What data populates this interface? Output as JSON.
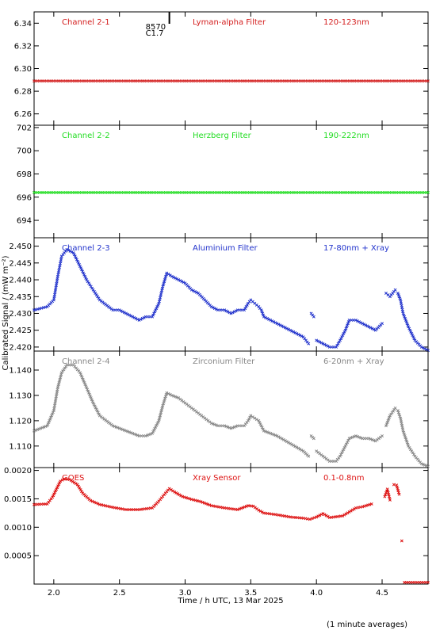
{
  "chart_data": {
    "type": "scatter",
    "xlabel": "Time / h UTC, 13 Mar 2025",
    "ylabel": "Calibrated Signal / (mW m⁻²)",
    "footnote": "(1 minute averages)",
    "xlim": [
      1.85,
      4.85
    ],
    "xticks": [
      "2.0",
      "2.5",
      "3.0",
      "3.5",
      "4.0",
      "4.5"
    ],
    "panels": [
      {
        "id": "p1",
        "color": "#d42020",
        "channel": "Channel 2-1",
        "filter": "Lyman-alpha Filter",
        "range": "120-123nm",
        "ylim": [
          6.25,
          6.35
        ],
        "yticks": [
          "6.26",
          "6.28",
          "6.30",
          "6.32",
          "6.34"
        ],
        "annotation_top": "8570",
        "annotation_bottom": "C1.7",
        "annotation_time": 2.88,
        "series": [
          {
            "x": [
              1.85,
              4.85
            ],
            "y": [
              6.289,
              6.289
            ]
          }
        ]
      },
      {
        "id": "p2",
        "color": "#22dd22",
        "channel": "Channel 2-2",
        "filter": "Herzberg Filter",
        "range": "190-222nm",
        "ylim": [
          692.5,
          702.2
        ],
        "yticks": [
          "694",
          "696",
          "698",
          "700",
          "702"
        ],
        "series": [
          {
            "x": [
              1.85,
              4.85
            ],
            "y": [
              696.4,
              696.4
            ]
          }
        ]
      },
      {
        "id": "p3",
        "color": "#2233cc",
        "channel": "Channel 2-3",
        "filter": "Aluminium Filter",
        "range": "17-80nm + Xray",
        "ylim": [
          2.4188,
          2.4525
        ],
        "yticks": [
          "2.420",
          "2.425",
          "2.430",
          "2.435",
          "2.440",
          "2.445",
          "2.450"
        ],
        "series": [
          {
            "x": [
              1.85,
              1.95,
              2.0,
              2.03,
              2.06,
              2.1,
              2.15,
              2.2,
              2.25,
              2.3,
              2.35,
              2.45,
              2.5,
              2.55,
              2.6,
              2.65,
              2.7,
              2.75,
              2.8,
              2.83,
              2.86,
              2.9,
              2.95,
              3.0,
              3.05,
              3.1,
              3.15,
              3.2,
              3.25,
              3.3,
              3.35,
              3.4,
              3.45,
              3.48,
              3.5,
              3.53,
              3.56,
              3.58,
              3.6,
              3.7,
              3.8,
              3.9,
              3.94
            ],
            "y": [
              2.431,
              2.432,
              2.434,
              2.441,
              2.447,
              2.449,
              2.448,
              2.444,
              2.44,
              2.437,
              2.434,
              2.431,
              2.431,
              2.43,
              2.429,
              2.428,
              2.429,
              2.429,
              2.433,
              2.438,
              2.442,
              2.441,
              2.44,
              2.439,
              2.437,
              2.436,
              2.434,
              2.432,
              2.431,
              2.431,
              2.43,
              2.431,
              2.431,
              2.433,
              2.434,
              2.433,
              2.432,
              2.431,
              2.429,
              2.427,
              2.425,
              2.423,
              2.421
            ]
          },
          {
            "x": [
              3.96,
              3.98
            ],
            "y": [
              2.43,
              2.429
            ]
          },
          {
            "x": [
              4.0,
              4.05,
              4.1,
              4.15,
              4.18,
              4.22,
              4.25,
              4.3,
              4.35,
              4.4,
              4.45,
              4.5
            ],
            "y": [
              2.422,
              2.421,
              2.42,
              2.42,
              2.422,
              2.425,
              2.428,
              2.428,
              2.427,
              2.426,
              2.425,
              2.427
            ]
          },
          {
            "x": [
              4.53,
              4.56,
              4.6
            ],
            "y": [
              2.436,
              2.435,
              2.437
            ]
          },
          {
            "x": [
              4.62,
              4.64,
              4.66,
              4.7,
              4.75,
              4.8,
              4.85
            ],
            "y": [
              2.436,
              2.434,
              2.43,
              2.426,
              2.422,
              2.42,
              2.419
            ]
          }
        ]
      },
      {
        "id": "p4",
        "color": "#888888",
        "channel": "Channel 2-4",
        "filter": "Zirconium Filter",
        "range": "6-20nm + Xray",
        "ylim": [
          1.1015,
          1.1475
        ],
        "yticks": [
          "1.110",
          "1.120",
          "1.130",
          "1.140"
        ],
        "series": [
          {
            "x": [
              1.85,
              1.95,
              2.0,
              2.03,
              2.06,
              2.1,
              2.15,
              2.2,
              2.25,
              2.3,
              2.35,
              2.45,
              2.5,
              2.55,
              2.6,
              2.65,
              2.7,
              2.75,
              2.8,
              2.83,
              2.86,
              2.9,
              2.95,
              3.0,
              3.05,
              3.1,
              3.15,
              3.2,
              3.25,
              3.3,
              3.35,
              3.4,
              3.45,
              3.48,
              3.5,
              3.53,
              3.56,
              3.58,
              3.6,
              3.7,
              3.8,
              3.9,
              3.94
            ],
            "y": [
              1.116,
              1.118,
              1.124,
              1.133,
              1.139,
              1.142,
              1.142,
              1.139,
              1.133,
              1.127,
              1.122,
              1.118,
              1.117,
              1.116,
              1.115,
              1.114,
              1.114,
              1.115,
              1.12,
              1.126,
              1.131,
              1.13,
              1.129,
              1.127,
              1.125,
              1.123,
              1.121,
              1.119,
              1.118,
              1.118,
              1.117,
              1.118,
              1.118,
              1.12,
              1.122,
              1.121,
              1.12,
              1.118,
              1.116,
              1.114,
              1.111,
              1.108,
              1.106
            ]
          },
          {
            "x": [
              3.96,
              3.98
            ],
            "y": [
              1.114,
              1.113
            ]
          },
          {
            "x": [
              4.0,
              4.05,
              4.1,
              4.15,
              4.18,
              4.22,
              4.25,
              4.3,
              4.35,
              4.4,
              4.45,
              4.5
            ],
            "y": [
              1.108,
              1.106,
              1.104,
              1.104,
              1.106,
              1.11,
              1.113,
              1.114,
              1.113,
              1.113,
              1.112,
              1.114
            ]
          },
          {
            "x": [
              4.53,
              4.56,
              4.6
            ],
            "y": [
              1.118,
              1.122,
              1.125
            ]
          },
          {
            "x": [
              4.62,
              4.64,
              4.66,
              4.7,
              4.75,
              4.8,
              4.85
            ],
            "y": [
              1.124,
              1.121,
              1.116,
              1.11,
              1.106,
              1.103,
              1.102
            ]
          }
        ]
      },
      {
        "id": "p5",
        "color": "#dd1111",
        "channel": "GOES",
        "filter": "Xray Sensor",
        "range": "0.1-0.8nm",
        "ylim": [
          0.0,
          0.00205
        ],
        "yticks": [
          "0.0005",
          "0.0010",
          "0.0015",
          "0.0020"
        ],
        "series": [
          {
            "x": [
              1.85,
              1.95,
              1.99,
              2.02,
              2.05,
              2.08,
              2.12,
              2.18,
              2.22,
              2.28,
              2.35,
              2.45,
              2.55,
              2.65,
              2.75,
              2.8,
              2.85,
              2.88,
              2.92,
              2.98,
              3.05,
              3.12,
              3.2,
              3.3,
              3.4,
              3.48,
              3.52,
              3.56,
              3.6,
              3.7,
              3.8,
              3.9,
              3.95,
              4.0,
              4.05,
              4.1,
              4.2,
              4.3,
              4.35,
              4.42
            ],
            "y": [
              0.0014,
              0.00141,
              0.00153,
              0.00167,
              0.00181,
              0.00185,
              0.00184,
              0.00175,
              0.0016,
              0.00147,
              0.0014,
              0.00135,
              0.00131,
              0.00131,
              0.00134,
              0.00146,
              0.0016,
              0.00168,
              0.00162,
              0.00154,
              0.00149,
              0.00145,
              0.00138,
              0.00134,
              0.00131,
              0.00138,
              0.00137,
              0.0013,
              0.00125,
              0.00122,
              0.00118,
              0.00116,
              0.00114,
              0.00118,
              0.00124,
              0.00117,
              0.0012,
              0.00134,
              0.00136,
              0.00141
            ]
          },
          {
            "x": [
              4.52,
              4.54,
              4.56
            ],
            "y": [
              0.00154,
              0.00167,
              0.00148
            ]
          },
          {
            "x": [
              4.59,
              4.61,
              4.63
            ],
            "y": [
              0.00175,
              0.00174,
              0.00158
            ]
          },
          {
            "x": [
              4.65
            ],
            "y": [
              0.00076
            ]
          },
          {
            "x": [
              4.67,
              4.7,
              4.75,
              4.8,
              4.85
            ],
            "y": [
              3e-05,
              3e-05,
              3e-05,
              3e-05,
              3e-05
            ]
          }
        ]
      }
    ]
  }
}
